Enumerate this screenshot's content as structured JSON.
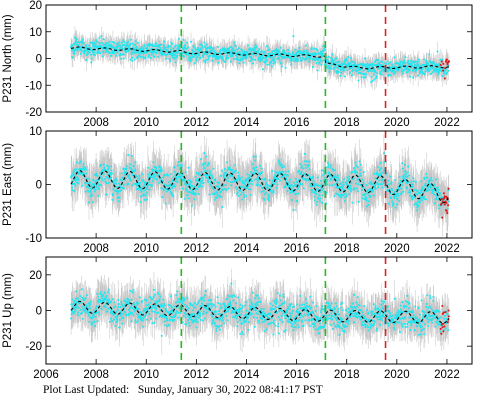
{
  "footer": {
    "label": "Plot Last Updated:",
    "timestamp": "Sunday, January 30, 2022 08:41:17 PST"
  },
  "colors": {
    "raw_error": "#b9b9b9",
    "raw_points": "#22e6f0",
    "rapid_points": "#e01818",
    "model_line": "#000000",
    "equipment_change": "#22bb22",
    "earthquake": "#dd2222"
  },
  "chart_data": [
    {
      "type": "scatter",
      "ylabel": "P231 North (mm)",
      "ylim": [
        -20,
        20
      ],
      "yticks": [
        -20,
        -10,
        0,
        10,
        20
      ],
      "xlim": [
        2006,
        2023
      ],
      "xticks": [
        2006,
        2008,
        2010,
        2012,
        2014,
        2016,
        2018,
        2020,
        2022
      ],
      "xticks_labeled": false,
      "x_start": 2007.0,
      "x_end": 2022.08,
      "rapid_start": 2021.75,
      "amplitude": 0.4,
      "noise": 1.6,
      "error": 3.0,
      "trend": [
        {
          "x": 2007.0,
          "y": 4.0
        },
        {
          "x": 2011.4,
          "y": 2.6
        },
        {
          "x": 2011.41,
          "y": 2.3
        },
        {
          "x": 2017.15,
          "y": 0.8
        },
        {
          "x": 2017.16,
          "y": -2.0
        },
        {
          "x": 2018.5,
          "y": -3.5
        },
        {
          "x": 2022.08,
          "y": -3.0
        }
      ],
      "vlines": [
        {
          "x": 2011.4,
          "kind": "equipment_change"
        },
        {
          "x": 2017.15,
          "kind": "equipment_change"
        },
        {
          "x": 2019.55,
          "kind": "earthquake"
        }
      ]
    },
    {
      "type": "scatter",
      "ylabel": "P231 East (mm)",
      "ylim": [
        -10,
        10
      ],
      "yticks": [
        -10,
        0,
        10
      ],
      "xlim": [
        2006,
        2023
      ],
      "xticks": [
        2006,
        2008,
        2010,
        2012,
        2014,
        2016,
        2018,
        2020,
        2022
      ],
      "xticks_labeled": false,
      "x_start": 2007.0,
      "x_end": 2022.08,
      "rapid_start": 2021.75,
      "amplitude": 1.6,
      "noise": 1.3,
      "error": 3.0,
      "trend": [
        {
          "x": 2007.0,
          "y": 1.0
        },
        {
          "x": 2017.15,
          "y": 0.3
        },
        {
          "x": 2019.5,
          "y": 0.0
        },
        {
          "x": 2022.08,
          "y": -2.0
        }
      ],
      "vlines": [
        {
          "x": 2011.4,
          "kind": "equipment_change"
        },
        {
          "x": 2017.15,
          "kind": "equipment_change"
        },
        {
          "x": 2019.55,
          "kind": "earthquake"
        }
      ]
    },
    {
      "type": "scatter",
      "ylabel": "P231 Up (mm)",
      "ylim": [
        -30,
        30
      ],
      "yticks": [
        -20,
        0,
        20
      ],
      "xlim": [
        2006,
        2023
      ],
      "xticks": [
        2006,
        2008,
        2010,
        2012,
        2014,
        2016,
        2018,
        2020,
        2022
      ],
      "xticks_labeled": true,
      "x_start": 2007.0,
      "x_end": 2022.08,
      "rapid_start": 2021.75,
      "amplitude": 3.2,
      "noise": 4.0,
      "error": 8.0,
      "trend": [
        {
          "x": 2007.0,
          "y": 2.0
        },
        {
          "x": 2011.4,
          "y": 0.0
        },
        {
          "x": 2017.15,
          "y": -3.0
        },
        {
          "x": 2022.08,
          "y": -4.0
        }
      ],
      "vlines": [
        {
          "x": 2011.4,
          "kind": "equipment_change"
        },
        {
          "x": 2017.15,
          "kind": "equipment_change"
        },
        {
          "x": 2019.55,
          "kind": "earthquake"
        }
      ]
    }
  ]
}
